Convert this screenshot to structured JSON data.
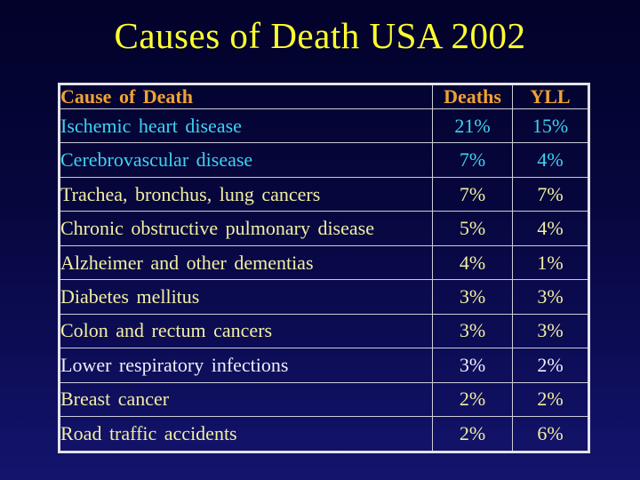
{
  "slide": {
    "title": "Causes of Death USA 2002"
  },
  "table": {
    "headers": [
      "Cause of Death",
      "Deaths",
      "YLL"
    ],
    "rows": [
      {
        "cause": "Ischemic heart disease",
        "deaths": "21%",
        "yll": "15%",
        "color": "cyan"
      },
      {
        "cause": "Cerebrovascular disease",
        "deaths": "7%",
        "yll": "4%",
        "color": "cyan"
      },
      {
        "cause": "Trachea, bronchus, lung cancers",
        "deaths": "7%",
        "yll": "7%",
        "color": "yellow"
      },
      {
        "cause": "Chronic obstructive pulmonary disease",
        "deaths": "5%",
        "yll": "4%",
        "color": "yellow"
      },
      {
        "cause": "Alzheimer and other dementias",
        "deaths": "4%",
        "yll": "1%",
        "color": "yellow"
      },
      {
        "cause": "Diabetes mellitus",
        "deaths": "3%",
        "yll": "3%",
        "color": "yellow"
      },
      {
        "cause": "Colon and rectum cancers",
        "deaths": "3%",
        "yll": "3%",
        "color": "yellow"
      },
      {
        "cause": "Lower respiratory infections",
        "deaths": "3%",
        "yll": "2%",
        "color": "white"
      },
      {
        "cause": "Breast cancer",
        "deaths": "2%",
        "yll": "2%",
        "color": "yellow"
      },
      {
        "cause": "Road traffic accidents",
        "deaths": "2%",
        "yll": "6%",
        "color": "yellow"
      }
    ]
  },
  "colors": {
    "background_top": "#02022a",
    "background_bottom": "#14146e",
    "title_text": "#ffff2e",
    "header_text": "#f0a233",
    "row_cyan_text": "#3ed3f2",
    "row_yellow_text": "#f2efa2",
    "row_white_text": "#eeeeff",
    "table_border": "#d9d9e0"
  },
  "chart_data": {
    "type": "table",
    "title": "Causes of Death USA 2002",
    "columns": [
      "Cause of Death",
      "Deaths",
      "YLL"
    ],
    "rows": [
      [
        "Ischemic heart disease",
        "21%",
        "15%"
      ],
      [
        "Cerebrovascular disease",
        "7%",
        "4%"
      ],
      [
        "Trachea, bronchus, lung cancers",
        "7%",
        "7%"
      ],
      [
        "Chronic obstructive pulmonary disease",
        "5%",
        "4%"
      ],
      [
        "Alzheimer and other dementias",
        "4%",
        "1%"
      ],
      [
        "Diabetes mellitus",
        "3%",
        "3%"
      ],
      [
        "Colon and rectum cancers",
        "3%",
        "3%"
      ],
      [
        "Lower respiratory infections",
        "3%",
        "2%"
      ],
      [
        "Breast cancer",
        "2%",
        "2%"
      ],
      [
        "Road traffic accidents",
        "2%",
        "6%"
      ]
    ]
  }
}
